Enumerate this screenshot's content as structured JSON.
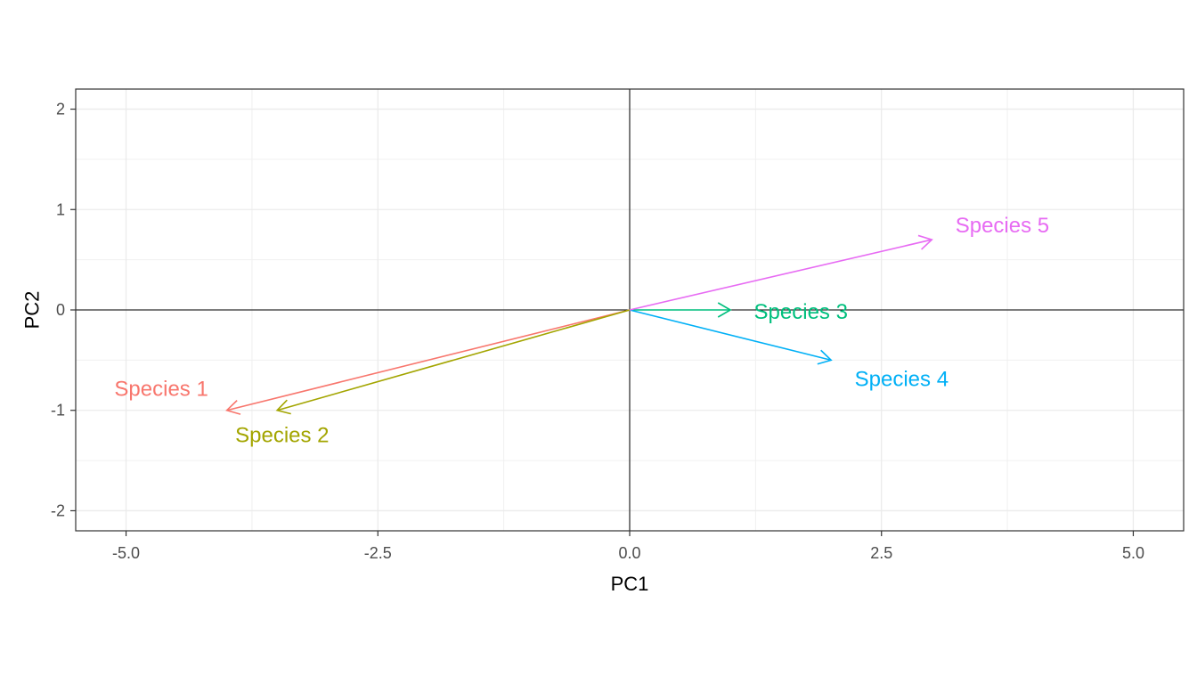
{
  "chart_data": {
    "type": "biplot-vectors",
    "xlabel": "PC1",
    "ylabel": "PC2",
    "xlim": [
      -5.5,
      5.5
    ],
    "ylim": [
      -2.2,
      2.2
    ],
    "xticks": [
      -5.0,
      -2.5,
      0.0,
      2.5,
      5.0
    ],
    "xtick_labels": [
      "-5.0",
      "-2.5",
      "0.0",
      "2.5",
      "5.0"
    ],
    "yticks": [
      -2,
      -1,
      0,
      1,
      2
    ],
    "ytick_labels": [
      "-2",
      "-1",
      "0",
      "1",
      "2"
    ],
    "grid": true,
    "reference_lines": {
      "x": 0,
      "y": 0
    },
    "series": [
      {
        "name": "Species 1",
        "x": -4.0,
        "y": -1.0,
        "label_x": -4.65,
        "label_y": -0.79,
        "color": "#F8766D"
      },
      {
        "name": "Species 2",
        "x": -3.5,
        "y": -1.0,
        "label_x": -3.45,
        "label_y": -1.25,
        "color": "#A3A500"
      },
      {
        "name": "Species 3",
        "x": 1.0,
        "y": 0.0,
        "label_x": 1.7,
        "label_y": -0.02,
        "color": "#00BF7D"
      },
      {
        "name": "Species 4",
        "x": 2.0,
        "y": -0.5,
        "label_x": 2.7,
        "label_y": -0.69,
        "color": "#00B0F6"
      },
      {
        "name": "Species 5",
        "x": 3.0,
        "y": 0.7,
        "label_x": 3.7,
        "label_y": 0.84,
        "color": "#E76BF3"
      }
    ]
  }
}
